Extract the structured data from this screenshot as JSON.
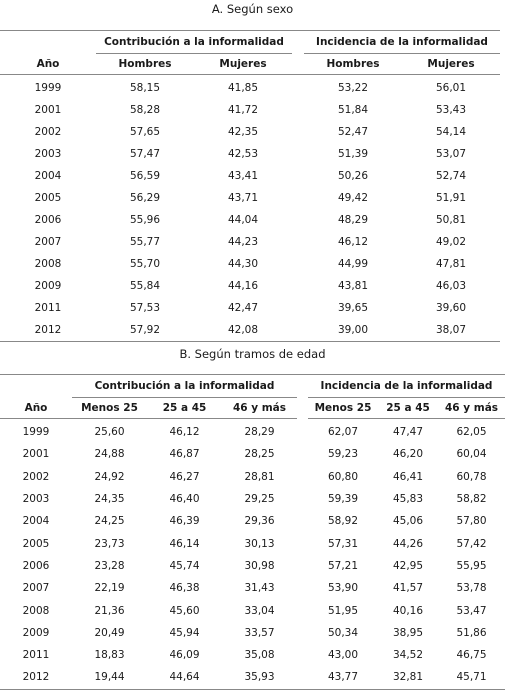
{
  "section_a": {
    "title": "A. Según sexo",
    "year_header": "Año",
    "group1": "Contribución a la informalidad",
    "group2": "Incidencia de la informalidad",
    "sub": [
      "Hombres",
      "Mujeres",
      "Hombres",
      "Mujeres"
    ],
    "rows": [
      {
        "year": "1999",
        "v": [
          "58,15",
          "41,85",
          "53,22",
          "56,01"
        ]
      },
      {
        "year": "2001",
        "v": [
          "58,28",
          "41,72",
          "51,84",
          "53,43"
        ]
      },
      {
        "year": "2002",
        "v": [
          "57,65",
          "42,35",
          "52,47",
          "54,14"
        ]
      },
      {
        "year": "2003",
        "v": [
          "57,47",
          "42,53",
          "51,39",
          "53,07"
        ]
      },
      {
        "year": "2004",
        "v": [
          "56,59",
          "43,41",
          "50,26",
          "52,74"
        ]
      },
      {
        "year": "2005",
        "v": [
          "56,29",
          "43,71",
          "49,42",
          "51,91"
        ]
      },
      {
        "year": "2006",
        "v": [
          "55,96",
          "44,04",
          "48,29",
          "50,81"
        ]
      },
      {
        "year": "2007",
        "v": [
          "55,77",
          "44,23",
          "46,12",
          "49,02"
        ]
      },
      {
        "year": "2008",
        "v": [
          "55,70",
          "44,30",
          "44,99",
          "47,81"
        ]
      },
      {
        "year": "2009",
        "v": [
          "55,84",
          "44,16",
          "43,81",
          "46,03"
        ]
      },
      {
        "year": "2011",
        "v": [
          "57,53",
          "42,47",
          "39,65",
          "39,60"
        ]
      },
      {
        "year": "2012",
        "v": [
          "57,92",
          "42,08",
          "39,00",
          "38,07"
        ]
      }
    ]
  },
  "section_b": {
    "title": "B. Según tramos de edad",
    "year_header": "Año",
    "group1": "Contribución a la informalidad",
    "group2": "Incidencia de la informalidad",
    "sub": [
      "Menos 25",
      "25 a 45",
      "46 y más",
      "Menos 25",
      "25 a 45",
      "46 y más"
    ],
    "rows": [
      {
        "year": "1999",
        "v": [
          "25,60",
          "46,12",
          "28,29",
          "62,07",
          "47,47",
          "62,05"
        ]
      },
      {
        "year": "2001",
        "v": [
          "24,88",
          "46,87",
          "28,25",
          "59,23",
          "46,20",
          "60,04"
        ]
      },
      {
        "year": "2002",
        "v": [
          "24,92",
          "46,27",
          "28,81",
          "60,80",
          "46,41",
          "60,78"
        ]
      },
      {
        "year": "2003",
        "v": [
          "24,35",
          "46,40",
          "29,25",
          "59,39",
          "45,83",
          "58,82"
        ]
      },
      {
        "year": "2004",
        "v": [
          "24,25",
          "46,39",
          "29,36",
          "58,92",
          "45,06",
          "57,80"
        ]
      },
      {
        "year": "2005",
        "v": [
          "23,73",
          "46,14",
          "30,13",
          "57,31",
          "44,26",
          "57,42"
        ]
      },
      {
        "year": "2006",
        "v": [
          "23,28",
          "45,74",
          "30,98",
          "57,21",
          "42,95",
          "55,95"
        ]
      },
      {
        "year": "2007",
        "v": [
          "22,19",
          "46,38",
          "31,43",
          "53,90",
          "41,57",
          "53,78"
        ]
      },
      {
        "year": "2008",
        "v": [
          "21,36",
          "45,60",
          "33,04",
          "51,95",
          "40,16",
          "53,47"
        ]
      },
      {
        "year": "2009",
        "v": [
          "20,49",
          "45,94",
          "33,57",
          "50,34",
          "38,95",
          "51,86"
        ]
      },
      {
        "year": "2011",
        "v": [
          "18,83",
          "46,09",
          "35,08",
          "43,00",
          "34,52",
          "46,75"
        ]
      },
      {
        "year": "2012",
        "v": [
          "19,44",
          "44,64",
          "35,93",
          "43,77",
          "32,81",
          "45,71"
        ]
      }
    ]
  }
}
